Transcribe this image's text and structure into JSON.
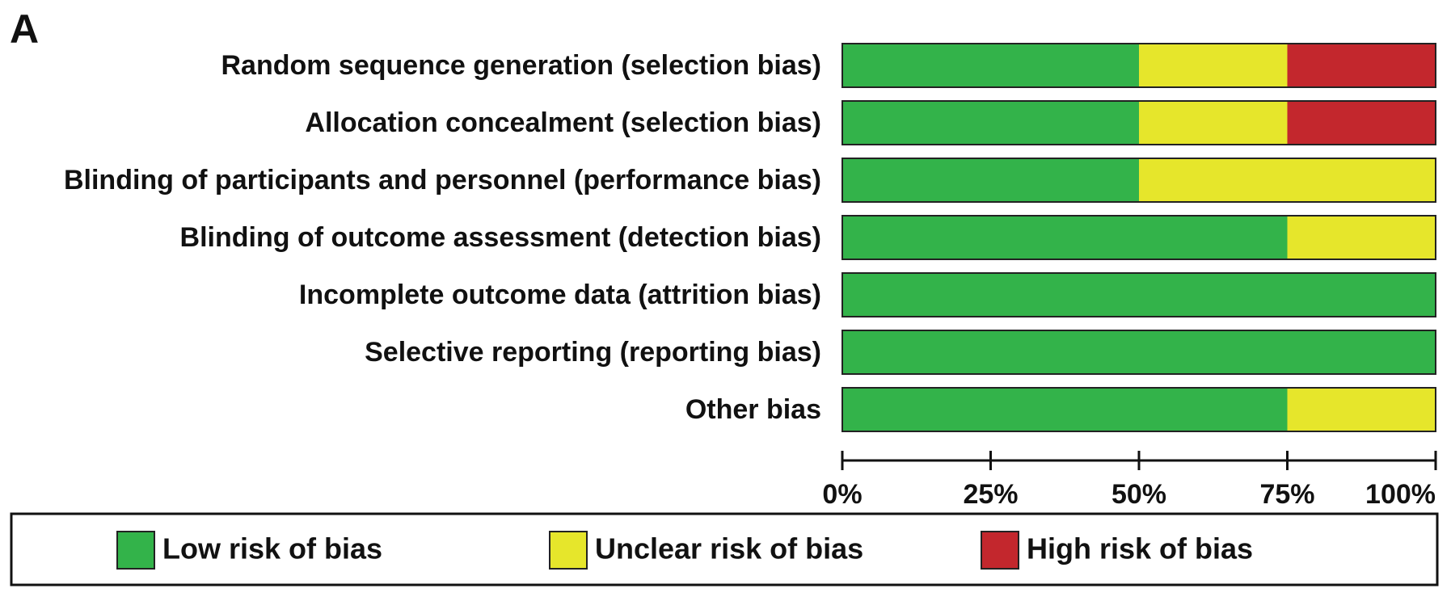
{
  "chart_data": {
    "type": "stacked-bar-horizontal",
    "panel_label": "A",
    "categories": [
      "Random sequence generation (selection bias)",
      "Allocation concealment (selection bias)",
      "Blinding of participants and personnel (performance bias)",
      "Blinding of outcome assessment (detection bias)",
      "Incomplete outcome data (attrition bias)",
      "Selective reporting (reporting bias)",
      "Other bias"
    ],
    "series": [
      {
        "name": "Low risk of bias",
        "color": "#33b34a",
        "values": [
          50,
          50,
          50,
          75,
          100,
          100,
          75
        ]
      },
      {
        "name": "Unclear risk of bias",
        "color": "#e6e62b",
        "values": [
          25,
          25,
          50,
          25,
          0,
          0,
          25
        ]
      },
      {
        "name": "High risk of bias",
        "color": "#c3272d",
        "values": [
          25,
          25,
          0,
          0,
          0,
          0,
          0
        ]
      }
    ],
    "xlim": [
      0,
      100
    ],
    "xticks": [
      {
        "value": 0,
        "label": "0%"
      },
      {
        "value": 25,
        "label": "25%"
      },
      {
        "value": 50,
        "label": "50%"
      },
      {
        "value": 75,
        "label": "75%"
      },
      {
        "value": 100,
        "label": "100%"
      }
    ],
    "legend": "bottom"
  }
}
